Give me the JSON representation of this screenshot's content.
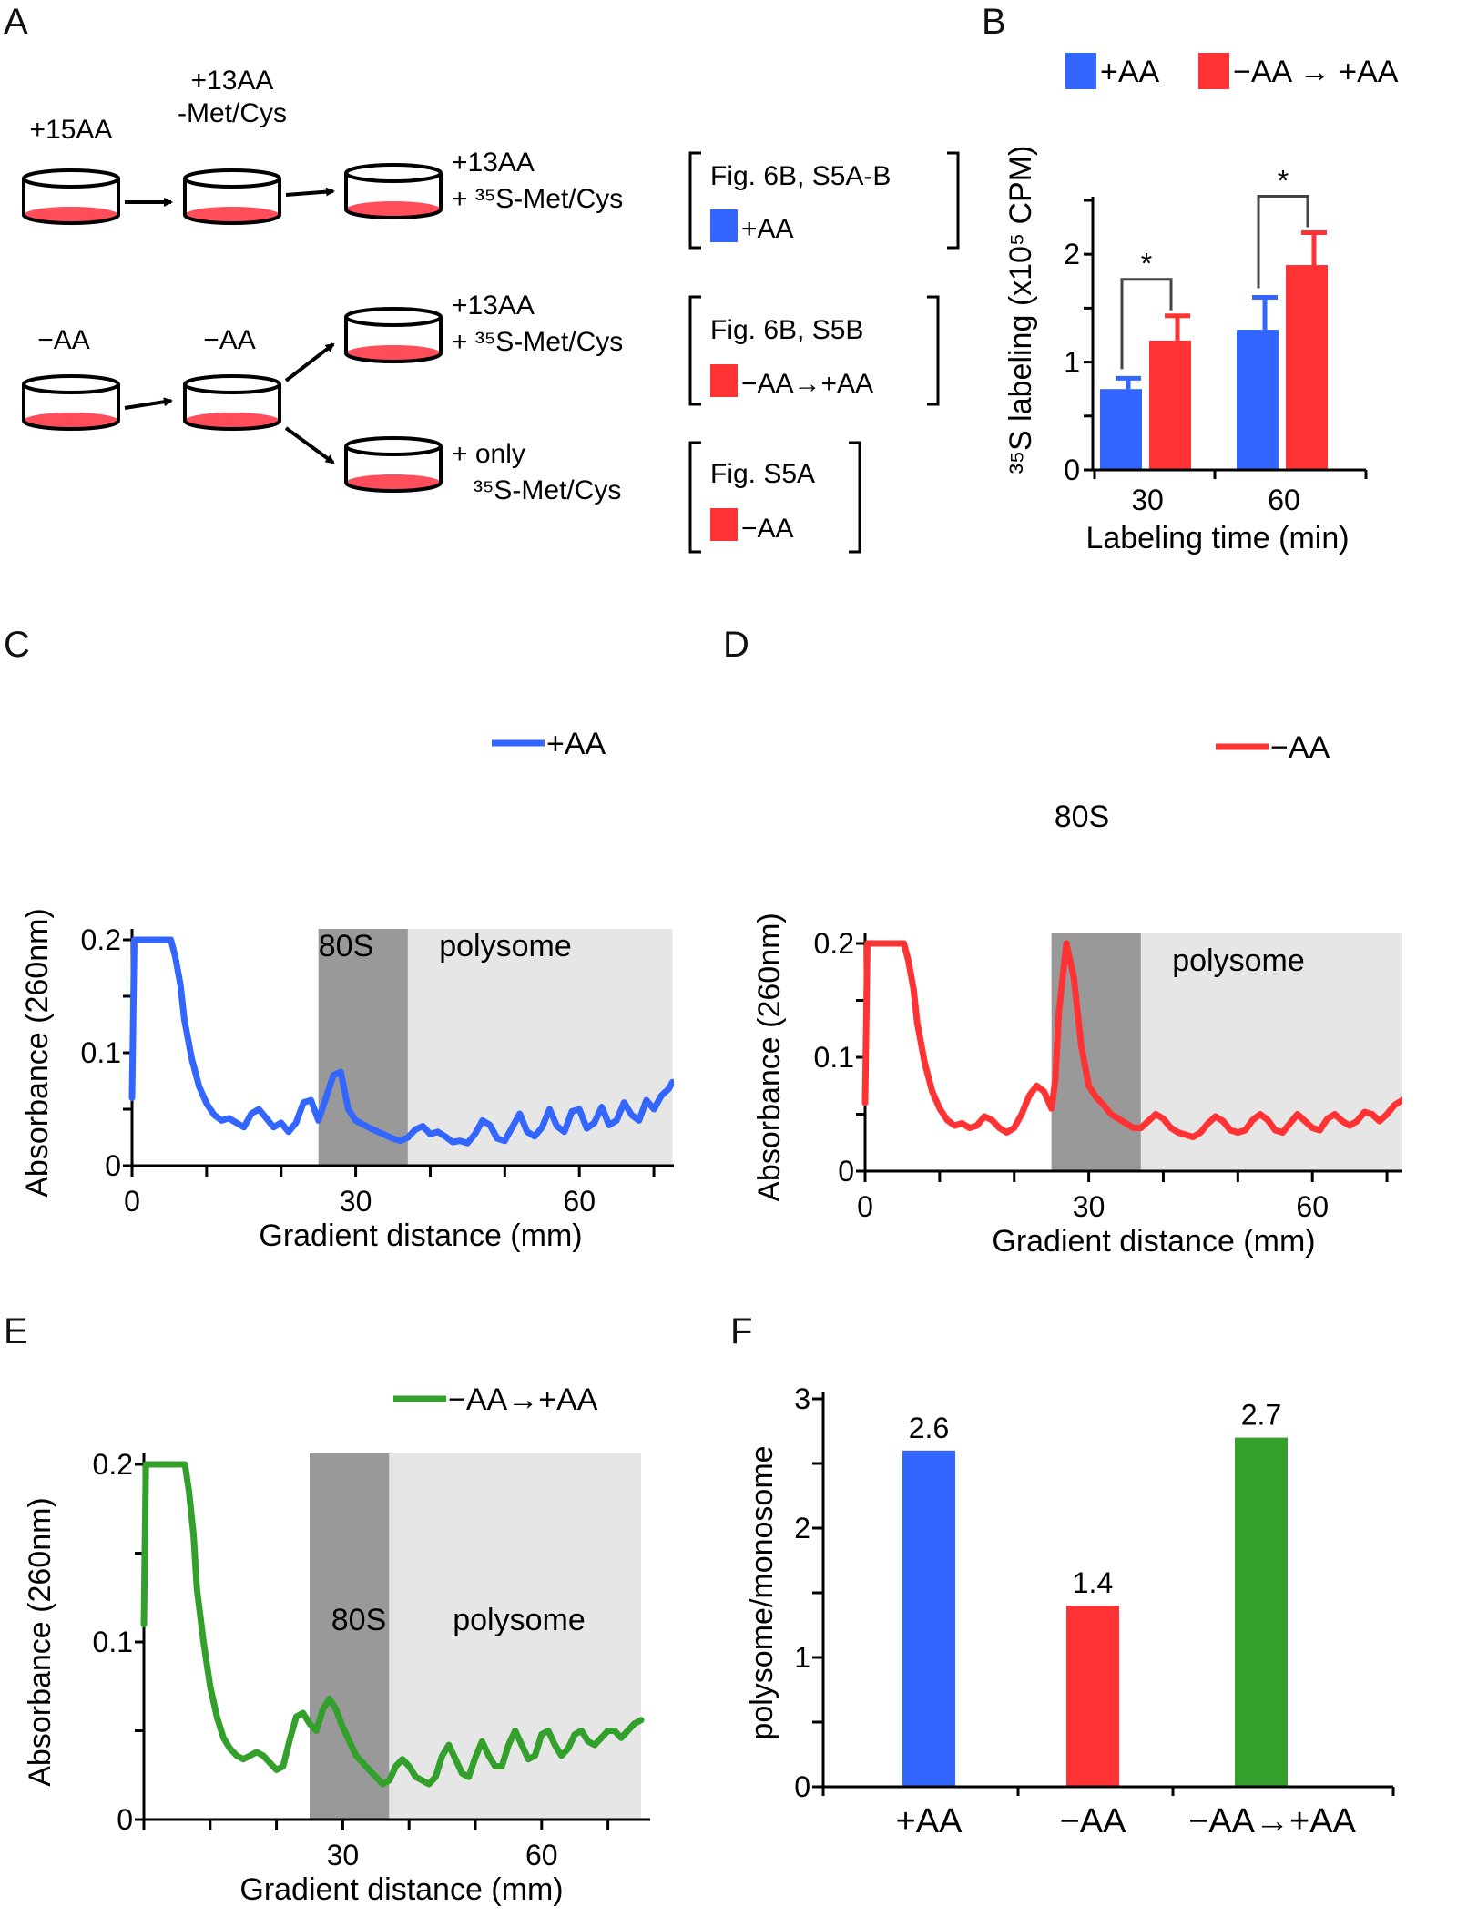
{
  "panel_letters": [
    "A",
    "B",
    "C",
    "D",
    "E",
    "F"
  ],
  "colors": {
    "blue": "#3366ff",
    "red": "#ff3333",
    "green": "#33a02c",
    "dish_fill": "#ff4d5a",
    "band_80s": "#999999",
    "band_poly": "#e6e6e6"
  },
  "schematic": {
    "stage1_label": "+15AA",
    "stage2_label": [
      "+13AA",
      "-Met/Cys"
    ],
    "minus_label": "−AA",
    "rows": [
      {
        "medium": [
          "+13AA",
          "+ ³⁵S-Met/Cys"
        ],
        "ref": "Fig. 6B, S5A-B",
        "legend": "+AA",
        "color_key": "blue"
      },
      {
        "medium": [
          "+13AA",
          "+ ³⁵S-Met/Cys"
        ],
        "ref": "Fig. 6B, S5B",
        "legend": "−AA→+AA",
        "color_key": "red"
      },
      {
        "medium": [
          "+ only",
          "³⁵S-Met/Cys"
        ],
        "ref": "Fig. S5A",
        "legend": "−AA",
        "color_key": "red"
      }
    ]
  },
  "chart_data": [
    {
      "panel": "B",
      "type": "bar",
      "xlabel": "Labeling time (min)",
      "ylabel": "³⁵S labeling (x10⁵ CPM)",
      "categories": [
        "30",
        "60"
      ],
      "series": [
        {
          "name": "+AA",
          "color": "#3366ff",
          "values": [
            0.75,
            1.3
          ],
          "errors": [
            0.1,
            0.3
          ]
        },
        {
          "name": "−AA → +AA",
          "color": "#ff3333",
          "values": [
            1.2,
            1.9
          ],
          "errors": [
            0.23,
            0.3
          ]
        }
      ],
      "ylim": [
        0,
        2.5
      ],
      "yticks": [
        "0",
        "1",
        "2"
      ],
      "significance": [
        "*",
        "*"
      ]
    },
    {
      "panel": "C",
      "type": "line",
      "xlabel": "Gradient distance (mm)",
      "ylabel": "Absorbance (260nm)",
      "legend": "+AA",
      "color": "#3366ff",
      "xlim": [
        0,
        75
      ],
      "ylim": [
        0,
        0.2
      ],
      "xticks": [
        "0",
        "30",
        "60"
      ],
      "yticks": [
        "0",
        "0.1",
        "0.2"
      ],
      "regions": [
        {
          "label": "80S",
          "x0": 25,
          "x1": 37
        },
        {
          "label": "polysome",
          "x0": 37,
          "x1": 72.5
        }
      ],
      "x": [
        0,
        0.3,
        0.8,
        5.2,
        5.8,
        6.5,
        7,
        8,
        9,
        10,
        11,
        12,
        13,
        14,
        15,
        16,
        17,
        18,
        19,
        20,
        21,
        22,
        23,
        24,
        25,
        26,
        27,
        28,
        29,
        30,
        32,
        34,
        35,
        36,
        37,
        38,
        39,
        40,
        41,
        42,
        43,
        44,
        45,
        46,
        47,
        48,
        49,
        50,
        51,
        52,
        53,
        54,
        55,
        56,
        57,
        58,
        59,
        60,
        61,
        62,
        63,
        64,
        65,
        66,
        67,
        68,
        69,
        70,
        71,
        72,
        72.5
      ],
      "y": [
        0.06,
        0.2,
        0.2,
        0.2,
        0.185,
        0.16,
        0.13,
        0.095,
        0.07,
        0.055,
        0.045,
        0.04,
        0.042,
        0.038,
        0.034,
        0.046,
        0.05,
        0.042,
        0.034,
        0.038,
        0.03,
        0.038,
        0.056,
        0.058,
        0.04,
        0.06,
        0.08,
        0.083,
        0.05,
        0.04,
        0.033,
        0.027,
        0.024,
        0.022,
        0.025,
        0.032,
        0.035,
        0.028,
        0.03,
        0.026,
        0.021,
        0.022,
        0.02,
        0.028,
        0.04,
        0.036,
        0.024,
        0.022,
        0.034,
        0.046,
        0.03,
        0.026,
        0.034,
        0.05,
        0.035,
        0.03,
        0.048,
        0.05,
        0.033,
        0.038,
        0.052,
        0.036,
        0.04,
        0.056,
        0.045,
        0.04,
        0.058,
        0.05,
        0.062,
        0.068,
        0.074
      ]
    },
    {
      "panel": "D",
      "type": "line",
      "xlabel": "Gradient distance (mm)",
      "ylabel": "Absorbance (260nm)",
      "legend": "−AA",
      "color": "#ff3333",
      "xlim": [
        0,
        75
      ],
      "ylim": [
        0,
        0.2
      ],
      "xticks": [
        "0",
        "30",
        "60"
      ],
      "yticks": [
        "0",
        "0.1",
        "0.2"
      ],
      "regions": [
        {
          "label": "80S",
          "x0": 25,
          "x1": 37
        },
        {
          "label": "polysome",
          "x0": 37,
          "x1": 72.5
        }
      ],
      "x": [
        0,
        0.3,
        0.8,
        5.2,
        5.8,
        6.5,
        7,
        8,
        9,
        10,
        11,
        12,
        13,
        14,
        15,
        16,
        17,
        18,
        19,
        20,
        21,
        22,
        23,
        24,
        25,
        25.5,
        26,
        27,
        28,
        29,
        30,
        31,
        32,
        33,
        34,
        35,
        36,
        37,
        38,
        39,
        40,
        41,
        42,
        43,
        44,
        45,
        46,
        47,
        48,
        49,
        50,
        51,
        52,
        53,
        54,
        55,
        56,
        57,
        58,
        59,
        60,
        61,
        62,
        63,
        64,
        65,
        66,
        67,
        68,
        69,
        70,
        71,
        72,
        72.5
      ],
      "y": [
        0.06,
        0.2,
        0.2,
        0.2,
        0.185,
        0.16,
        0.13,
        0.095,
        0.07,
        0.055,
        0.045,
        0.04,
        0.042,
        0.038,
        0.04,
        0.048,
        0.045,
        0.038,
        0.034,
        0.038,
        0.05,
        0.066,
        0.075,
        0.07,
        0.055,
        0.08,
        0.14,
        0.2,
        0.17,
        0.11,
        0.075,
        0.065,
        0.058,
        0.05,
        0.046,
        0.042,
        0.038,
        0.038,
        0.044,
        0.05,
        0.046,
        0.038,
        0.034,
        0.032,
        0.03,
        0.034,
        0.042,
        0.048,
        0.044,
        0.036,
        0.034,
        0.036,
        0.045,
        0.05,
        0.045,
        0.036,
        0.034,
        0.042,
        0.05,
        0.044,
        0.038,
        0.036,
        0.046,
        0.05,
        0.044,
        0.04,
        0.044,
        0.052,
        0.05,
        0.044,
        0.05,
        0.058,
        0.062,
        0.064
      ]
    },
    {
      "panel": "E",
      "type": "line",
      "xlabel": "Gradient distance (mm)",
      "ylabel": "Absorbance (260nm)",
      "legend": "−AA→+AA",
      "color": "#33a02c",
      "xlim": [
        0,
        75
      ],
      "ylim": [
        0,
        0.2
      ],
      "xticks": [
        "30",
        "60"
      ],
      "yticks": [
        "0",
        "0.1",
        "0.2"
      ],
      "regions": [
        {
          "label": "80S",
          "x0": 25,
          "x1": 37
        },
        {
          "label": "polysome",
          "x0": 37,
          "x1": 75
        }
      ],
      "x": [
        0,
        0.3,
        0.8,
        6.2,
        6.8,
        7.5,
        8,
        9,
        10,
        11,
        12,
        13,
        14,
        15,
        16,
        17,
        18,
        19,
        20,
        21,
        22,
        23,
        24,
        25,
        26,
        27,
        28,
        29,
        30,
        31,
        32,
        33,
        34,
        35,
        36,
        37,
        38,
        39,
        40,
        41,
        42,
        43,
        44,
        45,
        46,
        47,
        48,
        49,
        50,
        51,
        52,
        53,
        54,
        55,
        56,
        57,
        58,
        59,
        60,
        61,
        62,
        63,
        64,
        65,
        66,
        67,
        68,
        69,
        70,
        71,
        72,
        73,
        74,
        75
      ],
      "y": [
        0.11,
        0.2,
        0.2,
        0.2,
        0.185,
        0.16,
        0.13,
        0.1,
        0.075,
        0.058,
        0.046,
        0.04,
        0.036,
        0.034,
        0.036,
        0.038,
        0.036,
        0.032,
        0.028,
        0.03,
        0.045,
        0.058,
        0.06,
        0.054,
        0.05,
        0.062,
        0.068,
        0.062,
        0.052,
        0.044,
        0.036,
        0.032,
        0.028,
        0.024,
        0.02,
        0.022,
        0.03,
        0.034,
        0.03,
        0.024,
        0.022,
        0.02,
        0.024,
        0.036,
        0.042,
        0.034,
        0.026,
        0.024,
        0.035,
        0.044,
        0.036,
        0.03,
        0.03,
        0.042,
        0.05,
        0.042,
        0.034,
        0.036,
        0.048,
        0.05,
        0.042,
        0.036,
        0.04,
        0.048,
        0.05,
        0.044,
        0.042,
        0.046,
        0.05,
        0.05,
        0.046,
        0.05,
        0.054,
        0.056
      ]
    },
    {
      "panel": "F",
      "type": "bar",
      "xlabel": "",
      "ylabel": "polysome/monosome",
      "categories": [
        "+AA",
        "−AA",
        "−AA→+AA"
      ],
      "values": [
        2.6,
        1.4,
        2.7
      ],
      "labels": [
        "2.6",
        "1.4",
        "2.7"
      ],
      "colors": [
        "#3366ff",
        "#ff3333",
        "#33a02c"
      ],
      "ylim": [
        0,
        3
      ],
      "yticks": [
        "0",
        "1",
        "2",
        "3"
      ]
    }
  ]
}
